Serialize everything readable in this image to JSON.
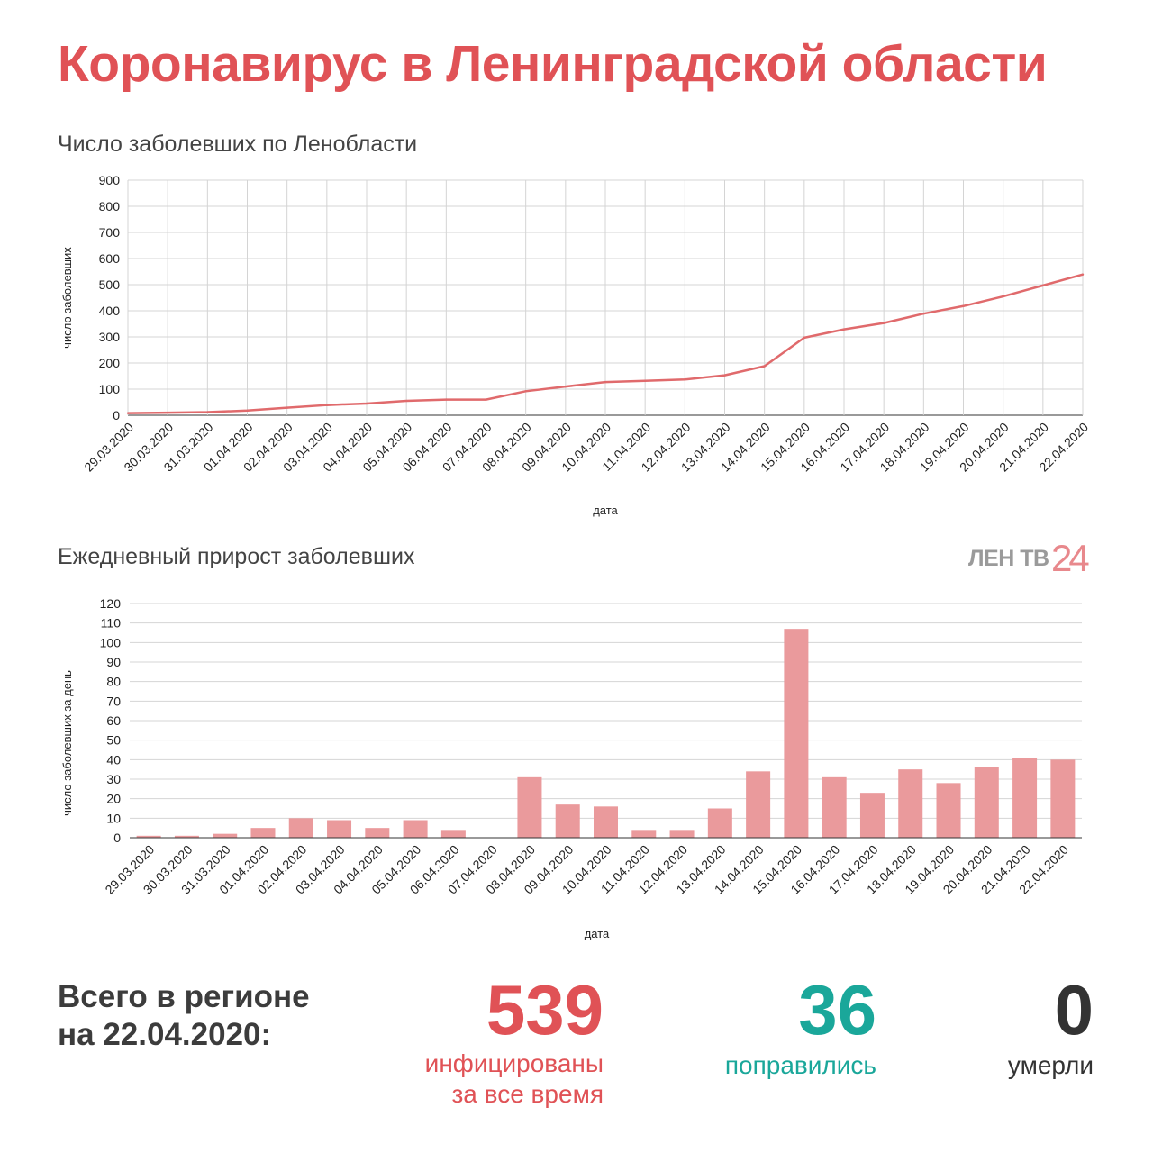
{
  "header": {
    "title": "Коронавирус в Ленинградской области"
  },
  "logo": {
    "text": "ЛЕН ТВ",
    "number": "24"
  },
  "chart_data": [
    {
      "type": "line",
      "title": "Число заболевших по Ленобласти",
      "xlabel": "дата",
      "ylabel": "число заболевших",
      "ylim": [
        0,
        900
      ],
      "yticks": [
        0,
        100,
        200,
        300,
        400,
        500,
        600,
        700,
        800,
        900
      ],
      "grid": true,
      "color": "#e06a6c",
      "categories": [
        "29.03.2020",
        "30.03.2020",
        "31.03.2020",
        "01.04.2020",
        "02.04.2020",
        "03.04.2020",
        "04.04.2020",
        "05.04.2020",
        "06.04.2020",
        "07.04.2020",
        "08.04.2020",
        "09.04.2020",
        "10.04.2020",
        "11.04.2020",
        "12.04.2020",
        "13.04.2020",
        "14.04.2020",
        "15.04.2020",
        "16.04.2020",
        "17.04.2020",
        "18.04.2020",
        "19.04.2020",
        "20.04.2020",
        "21.04.2020",
        "22.04.2020"
      ],
      "values": [
        8,
        10,
        12,
        18,
        29,
        39,
        45,
        55,
        60,
        60,
        92,
        110,
        127,
        132,
        137,
        153,
        188,
        297,
        329,
        353,
        389,
        418,
        455,
        497,
        539
      ]
    },
    {
      "type": "bar",
      "title": "Ежедневный прирост заболевших",
      "xlabel": "дата",
      "ylabel": "число заболевших за день",
      "ylim": [
        0,
        120
      ],
      "yticks": [
        0,
        10,
        20,
        30,
        40,
        50,
        60,
        70,
        80,
        90,
        100,
        110,
        120
      ],
      "grid": true,
      "color": "#ea9a9c",
      "categories": [
        "29.03.2020",
        "30.03.2020",
        "31.03.2020",
        "01.04.2020",
        "02.04.2020",
        "03.04.2020",
        "04.04.2020",
        "05.04.2020",
        "06.04.2020",
        "07.04.2020",
        "08.04.2020",
        "09.04.2020",
        "10.04.2020",
        "11.04.2020",
        "12.04.2020",
        "13.04.2020",
        "14.04.2020",
        "15.04.2020",
        "16.04.2020",
        "17.04.2020",
        "18.04.2020",
        "19.04.2020",
        "20.04.2020",
        "21.04.2020",
        "22.04.2020"
      ],
      "values": [
        1,
        1,
        2,
        5,
        10,
        9,
        5,
        9,
        4,
        0,
        31,
        17,
        16,
        4,
        4,
        15,
        34,
        107,
        31,
        23,
        35,
        28,
        36,
        41,
        40
      ]
    }
  ],
  "summary": {
    "label_line1": "Всего в регионе",
    "label_line2": "на 22.04.2020:",
    "infected": {
      "value": "539",
      "caption_line1": "инфицированы",
      "caption_line2": "за все время",
      "color": "#e05256"
    },
    "recovered": {
      "value": "36",
      "caption": "поправились",
      "color": "#1aa79a"
    },
    "deaths": {
      "value": "0",
      "caption": "умерли",
      "color": "#333333"
    }
  }
}
